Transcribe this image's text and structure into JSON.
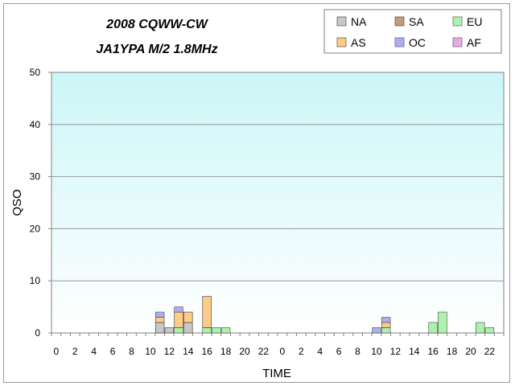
{
  "chart_data": {
    "type": "bar",
    "stacked": true,
    "title": "2008 CQWW-CW",
    "subtitle": "JA1YPA  M/2 1.8MHz",
    "xlabel": "TIME",
    "ylabel": "QSO",
    "ylim": [
      0,
      50
    ],
    "yticks": [
      0,
      10,
      20,
      30,
      40,
      50
    ],
    "grid": true,
    "legend_position": "top-right",
    "hours": [
      0,
      1,
      2,
      3,
      4,
      5,
      6,
      7,
      8,
      9,
      10,
      11,
      12,
      13,
      14,
      15,
      16,
      17,
      18,
      19,
      20,
      21,
      22,
      23,
      0,
      1,
      2,
      3,
      4,
      5,
      6,
      7,
      8,
      9,
      10,
      11,
      12,
      13,
      14,
      15,
      16,
      17,
      18,
      19,
      20,
      21,
      22,
      23
    ],
    "xtick_labels": [
      "0",
      "2",
      "4",
      "6",
      "8",
      "10",
      "12",
      "14",
      "16",
      "18",
      "20",
      "22",
      "0",
      "2",
      "4",
      "6",
      "8",
      "10",
      "12",
      "14",
      "16",
      "18",
      "20",
      "22"
    ],
    "series": [
      {
        "name": "NA",
        "color": "#c8c8c8",
        "values": [
          0,
          0,
          0,
          0,
          0,
          0,
          0,
          0,
          0,
          0,
          0,
          2,
          1,
          0,
          2,
          0,
          0,
          0,
          0,
          0,
          0,
          0,
          0,
          0,
          0,
          0,
          0,
          0,
          0,
          0,
          0,
          0,
          0,
          0,
          0,
          0,
          0,
          0,
          0,
          0,
          0,
          0,
          0,
          0,
          0,
          0,
          0,
          0
        ]
      },
      {
        "name": "SA",
        "color": "#cc9977",
        "values": [
          0,
          0,
          0,
          0,
          0,
          0,
          0,
          0,
          0,
          0,
          0,
          0,
          0,
          0,
          0,
          0,
          0,
          0,
          0,
          0,
          0,
          0,
          0,
          0,
          0,
          0,
          0,
          0,
          0,
          0,
          0,
          0,
          0,
          0,
          0,
          0,
          0,
          0,
          0,
          0,
          0,
          0,
          0,
          0,
          0,
          0,
          0,
          0
        ]
      },
      {
        "name": "EU",
        "color": "#99ee99",
        "values": [
          0,
          0,
          0,
          0,
          0,
          0,
          0,
          0,
          0,
          0,
          0,
          0,
          0,
          1,
          0,
          0,
          1,
          1,
          1,
          0,
          0,
          0,
          0,
          0,
          0,
          0,
          0,
          0,
          0,
          0,
          0,
          0,
          0,
          0,
          0,
          1,
          0,
          0,
          0,
          0,
          2,
          4,
          0,
          0,
          0,
          2,
          1,
          0
        ]
      },
      {
        "name": "AS",
        "color": "#ffcc88",
        "values": [
          0,
          0,
          0,
          0,
          0,
          0,
          0,
          0,
          0,
          0,
          0,
          1,
          0,
          3,
          2,
          0,
          6,
          0,
          0,
          0,
          0,
          0,
          0,
          0,
          0,
          0,
          0,
          0,
          0,
          0,
          0,
          0,
          0,
          0,
          0,
          1,
          0,
          0,
          0,
          0,
          0,
          0,
          0,
          0,
          0,
          0,
          0,
          0
        ]
      },
      {
        "name": "OC",
        "color": "#9999ee",
        "values": [
          0,
          0,
          0,
          0,
          0,
          0,
          0,
          0,
          0,
          0,
          0,
          1,
          0,
          1,
          0,
          0,
          0,
          0,
          0,
          0,
          0,
          0,
          0,
          0,
          0,
          0,
          0,
          0,
          0,
          0,
          0,
          0,
          0,
          0,
          1,
          1,
          0,
          0,
          0,
          0,
          0,
          0,
          0,
          0,
          0,
          0,
          0,
          0
        ]
      },
      {
        "name": "AF",
        "color": "#dd99dd",
        "values": [
          0,
          0,
          0,
          0,
          0,
          0,
          0,
          0,
          0,
          0,
          0,
          0,
          0,
          0,
          0,
          0,
          0,
          0,
          0,
          0,
          0,
          0,
          0,
          0,
          0,
          0,
          0,
          0,
          0,
          0,
          0,
          0,
          0,
          0,
          0,
          0,
          0,
          0,
          0,
          0,
          0,
          0,
          0,
          0,
          0,
          0,
          0,
          0
        ]
      }
    ],
    "legend_order": [
      "NA",
      "SA",
      "EU",
      "AS",
      "OC",
      "AF"
    ]
  }
}
